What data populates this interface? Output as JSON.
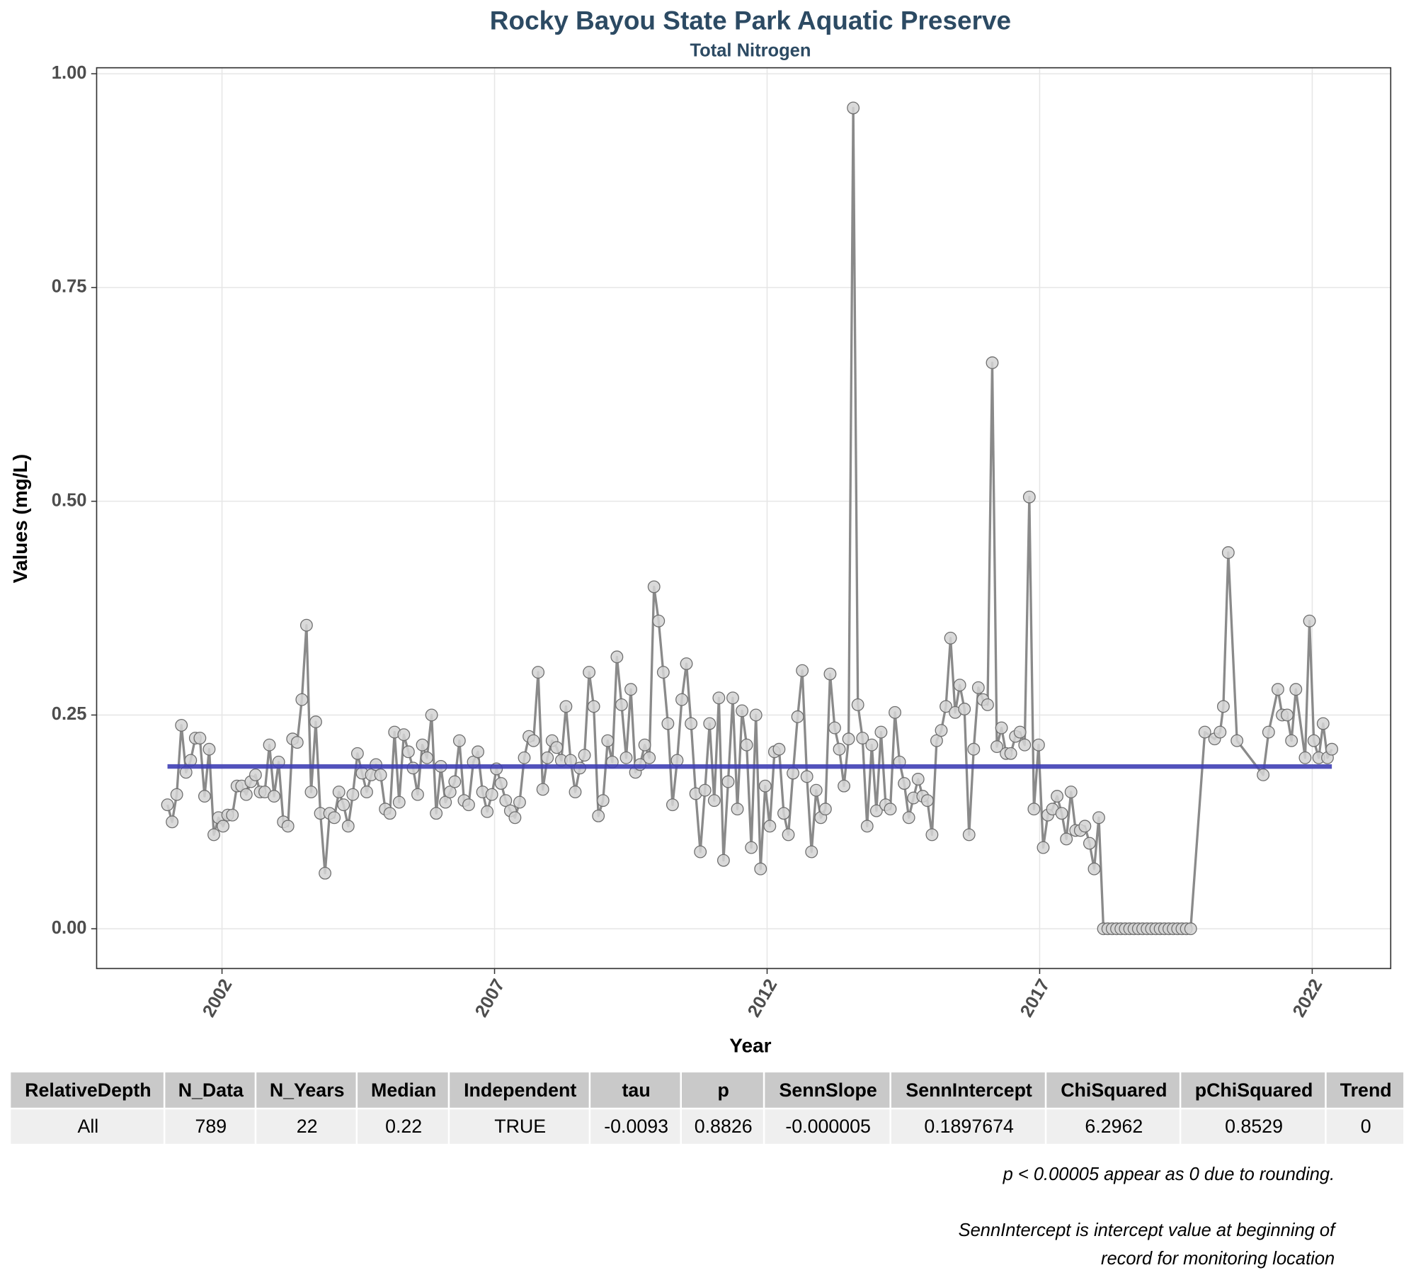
{
  "chart_data": {
    "type": "line",
    "title": "Rocky Bayou State Park Aquatic Preserve",
    "subtitle": "Total Nitrogen",
    "xlabel": "Year",
    "ylabel": "Values (mg/L)",
    "x": [
      2001,
      2001.085,
      2001.17,
      2001.255,
      2001.34,
      2001.425,
      2001.51,
      2001.595,
      2001.68,
      2001.765,
      2001.85,
      2001.935,
      2002.02,
      2002.105,
      2002.19,
      2002.275,
      2002.36,
      2002.445,
      2002.53,
      2002.615,
      2002.7,
      2002.785,
      2002.87,
      2002.955,
      2003.04,
      2003.125,
      2003.21,
      2003.295,
      2003.38,
      2003.465,
      2003.55,
      2003.635,
      2003.72,
      2003.805,
      2003.89,
      2003.975,
      2004.06,
      2004.145,
      2004.23,
      2004.315,
      2004.4,
      2004.485,
      2004.57,
      2004.655,
      2004.74,
      2004.825,
      2004.91,
      2004.995,
      2005.08,
      2005.165,
      2005.25,
      2005.335,
      2005.42,
      2005.505,
      2005.59,
      2005.675,
      2005.76,
      2005.845,
      2005.93,
      2006.015,
      2006.1,
      2006.185,
      2006.27,
      2006.355,
      2006.44,
      2006.525,
      2006.61,
      2006.695,
      2006.78,
      2006.865,
      2006.95,
      2007.035,
      2007.12,
      2007.205,
      2007.29,
      2007.375,
      2007.46,
      2007.545,
      2007.63,
      2007.715,
      2007.8,
      2007.885,
      2007.97,
      2008.055,
      2008.14,
      2008.225,
      2008.31,
      2008.395,
      2008.48,
      2008.565,
      2008.65,
      2008.735,
      2008.82,
      2008.905,
      2008.99,
      2009.075,
      2009.16,
      2009.245,
      2009.33,
      2009.415,
      2009.5,
      2009.585,
      2009.67,
      2009.755,
      2009.84,
      2009.925,
      2010.01,
      2010.095,
      2010.18,
      2010.265,
      2010.35,
      2010.435,
      2010.52,
      2010.605,
      2010.69,
      2010.775,
      2010.86,
      2010.945,
      2011.03,
      2011.115,
      2011.2,
      2011.285,
      2011.37,
      2011.455,
      2011.54,
      2011.625,
      2011.71,
      2011.795,
      2011.88,
      2011.965,
      2012.05,
      2012.135,
      2012.22,
      2012.305,
      2012.39,
      2012.475,
      2012.56,
      2012.645,
      2012.73,
      2012.815,
      2012.9,
      2012.985,
      2013.07,
      2013.155,
      2013.24,
      2013.325,
      2013.41,
      2013.495,
      2013.58,
      2013.665,
      2013.75,
      2013.835,
      2013.92,
      2014.005,
      2014.09,
      2014.175,
      2014.26,
      2014.345,
      2014.43,
      2014.515,
      2014.6,
      2014.685,
      2014.77,
      2014.855,
      2014.94,
      2015.025,
      2015.11,
      2015.195,
      2015.28,
      2015.365,
      2015.45,
      2015.535,
      2015.62,
      2015.705,
      2015.79,
      2015.875,
      2015.96,
      2016.045,
      2016.13,
      2016.215,
      2016.3,
      2016.385,
      2016.47,
      2016.555,
      2016.64,
      2016.725,
      2016.81,
      2016.895,
      2016.98,
      2017.065,
      2017.15,
      2017.235,
      2017.32,
      2017.405,
      2017.49,
      2017.575,
      2017.66,
      2017.745,
      2017.83,
      2017.915,
      2018,
      2018.085,
      2018.17,
      2018.25,
      2018.33,
      2018.41,
      2018.49,
      2018.57,
      2018.65,
      2018.73,
      2018.81,
      2018.89,
      2018.97,
      2019.05,
      2019.13,
      2019.21,
      2019.29,
      2019.37,
      2019.45,
      2019.53,
      2019.61,
      2019.69,
      2019.77,
      2020.03,
      2020.21,
      2020.31,
      2020.37,
      2020.46,
      2020.62,
      2021.1,
      2021.2,
      2021.37,
      2021.45,
      2021.54,
      2021.62,
      2021.7,
      2021.87,
      2021.95,
      2022.03,
      2022.12,
      2022.2,
      2022.28,
      2022.36
    ],
    "series": [
      {
        "color": "#8a8a8a",
        "values": [
          0.145,
          0.125,
          0.157,
          0.238,
          0.183,
          0.197,
          0.223,
          0.223,
          0.155,
          0.21,
          0.11,
          0.13,
          0.12,
          0.133,
          0.133,
          0.167,
          0.167,
          0.157,
          0.172,
          0.18,
          0.16,
          0.16,
          0.215,
          0.155,
          0.195,
          0.125,
          0.12,
          0.222,
          0.218,
          0.268,
          0.355,
          0.16,
          0.242,
          0.135,
          0.065,
          0.135,
          0.13,
          0.16,
          0.145,
          0.12,
          0.157,
          0.205,
          0.182,
          0.16,
          0.18,
          0.192,
          0.18,
          0.14,
          0.135,
          0.23,
          0.148,
          0.227,
          0.207,
          0.188,
          0.157,
          0.215,
          0.2,
          0.25,
          0.135,
          0.19,
          0.148,
          0.16,
          0.172,
          0.22,
          0.15,
          0.145,
          0.195,
          0.207,
          0.16,
          0.137,
          0.157,
          0.187,
          0.17,
          0.15,
          0.138,
          0.13,
          0.148,
          0.2,
          0.225,
          0.22,
          0.3,
          0.163,
          0.2,
          0.22,
          0.212,
          0.197,
          0.26,
          0.197,
          0.16,
          0.188,
          0.203,
          0.3,
          0.26,
          0.132,
          0.15,
          0.22,
          0.195,
          0.318,
          0.262,
          0.2,
          0.28,
          0.183,
          0.192,
          0.215,
          0.2,
          0.4,
          0.36,
          0.3,
          0.24,
          0.145,
          0.197,
          0.268,
          0.31,
          0.24,
          0.158,
          0.09,
          0.162,
          0.24,
          0.15,
          0.27,
          0.08,
          0.172,
          0.27,
          0.14,
          0.255,
          0.215,
          0.095,
          0.25,
          0.07,
          0.167,
          0.12,
          0.207,
          0.21,
          0.135,
          0.11,
          0.182,
          0.248,
          0.302,
          0.178,
          0.09,
          0.162,
          0.13,
          0.14,
          0.298,
          0.235,
          0.21,
          0.167,
          0.222,
          0.96,
          0.262,
          0.223,
          0.12,
          0.215,
          0.138,
          0.23,
          0.145,
          0.14,
          0.253,
          0.195,
          0.17,
          0.13,
          0.153,
          0.175,
          0.155,
          0.15,
          0.11,
          0.22,
          0.232,
          0.26,
          0.34,
          0.253,
          0.285,
          0.257,
          0.11,
          0.21,
          0.282,
          0.268,
          0.262,
          0.662,
          0.213,
          0.235,
          0.205,
          0.205,
          0.225,
          0.23,
          0.215,
          0.505,
          0.14,
          0.215,
          0.095,
          0.133,
          0.14,
          0.155,
          0.135,
          0.105,
          0.16,
          0.115,
          0.115,
          0.12,
          0.1,
          0.07,
          0.13,
          0,
          0,
          0,
          0,
          0,
          0,
          0,
          0,
          0,
          0,
          0,
          0,
          0,
          0,
          0,
          0,
          0,
          0,
          0,
          0,
          0,
          0.23,
          0.222,
          0.23,
          0.26,
          0.44,
          0.22,
          0.18,
          0.23,
          0.28,
          0.25,
          0.25,
          0.22,
          0.28,
          0.2,
          0.36,
          0.22,
          0.2,
          0.24,
          0.2,
          0.21
        ]
      }
    ],
    "trend": {
      "color": "#3f3fb5",
      "x": [
        2001,
        2022.36
      ],
      "values": [
        0.1898,
        0.1897
      ]
    },
    "xlim": [
      1999.7,
      2023.44
    ],
    "ylim": [
      -0.0465,
      1.007
    ],
    "xticks": [
      2002,
      2007,
      2012,
      2017,
      2022
    ],
    "yticks": [
      {
        "value": 0,
        "label": "0.00"
      },
      {
        "value": 0.25,
        "label": "0.25"
      },
      {
        "value": 0.5,
        "label": "0.50"
      },
      {
        "value": 0.75,
        "label": "0.75"
      },
      {
        "value": 1,
        "label": "1.00"
      }
    ],
    "grid": true
  },
  "table": {
    "columns": [
      "RelativeDepth",
      "N_Data",
      "N_Years",
      "Median",
      "Independent",
      "tau",
      "p",
      "SennSlope",
      "SennIntercept",
      "ChiSquared",
      "pChiSquared",
      "Trend"
    ],
    "rows": [
      [
        "All",
        789,
        22,
        0.22,
        "TRUE",
        -0.0093,
        0.8826,
        "-0.000005",
        0.1897674,
        6.2962,
        0.8529,
        0
      ]
    ]
  },
  "notes": [
    "p < 0.00005 appear as 0 due to rounding.",
    "SennIntercept is intercept value at beginning of",
    "record for monitoring location"
  ]
}
